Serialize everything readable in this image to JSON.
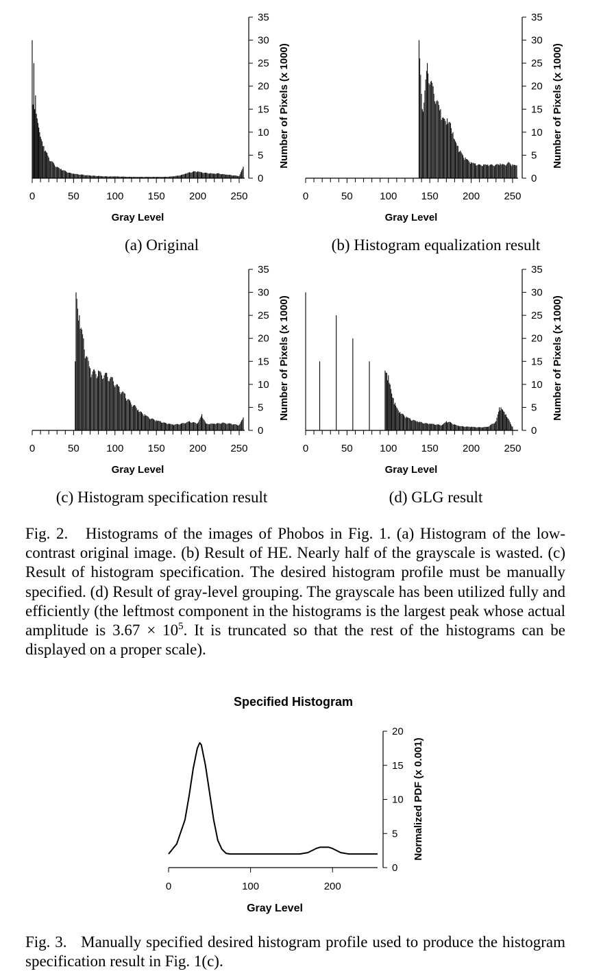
{
  "figure2": {
    "panels": [
      {
        "id": "a",
        "caption": "(a) Original",
        "xlabel": "Gray Level",
        "ylabel": "Number of Pixels (x 1000)",
        "xticks": [
          "0",
          "50",
          "100",
          "150",
          "200",
          "250"
        ],
        "yticks": [
          "0",
          "5",
          "10",
          "15",
          "20",
          "25",
          "30",
          "35"
        ]
      },
      {
        "id": "b",
        "caption": "(b) Histogram equalization result",
        "xlabel": "Gray Level",
        "ylabel": "Number of Pixels (x 1000)",
        "xticks": [
          "0",
          "50",
          "100",
          "150",
          "200",
          "250"
        ],
        "yticks": [
          "0",
          "5",
          "10",
          "15",
          "20",
          "25",
          "30",
          "35"
        ]
      },
      {
        "id": "c",
        "caption": "(c) Histogram specification result",
        "xlabel": "Gray Level",
        "ylabel": "Number of Pixels (x 1000)",
        "xticks": [
          "0",
          "50",
          "100",
          "150",
          "200",
          "250"
        ],
        "yticks": [
          "0",
          "5",
          "10",
          "15",
          "20",
          "25",
          "30",
          "35"
        ]
      },
      {
        "id": "d",
        "caption": "(d) GLG result",
        "xlabel": "Gray Level",
        "ylabel": "Number of Pixels (x 1000)",
        "xticks": [
          "0",
          "50",
          "100",
          "150",
          "200",
          "250"
        ],
        "yticks": [
          "0",
          "5",
          "10",
          "15",
          "20",
          "25",
          "30",
          "35"
        ]
      }
    ],
    "caption": {
      "prefix": "Fig. 2.",
      "text_before_math": "Histograms of the images of Phobos in Fig. 1. (a) Histogram of the low-contrast original image. (b) Result of HE. Nearly half of the grayscale is wasted. (c) Result of histogram specification. The desired histogram profile must be manually specified. (d) Result of gray-level grouping. The grayscale has been utilized fully and efficiently (the leftmost component in the histograms is the largest peak whose actual amplitude is",
      "math_base": "3.67 × 10",
      "math_exp": "5",
      "text_after_math": ". It is truncated so that the rest of the histograms can be displayed on a proper scale)."
    }
  },
  "figure3": {
    "title": "Specified Histogram",
    "xlabel": "Gray Level",
    "ylabel": "Normalized PDF (x 0.001)",
    "xticks": [
      "0",
      "100",
      "200"
    ],
    "yticks": [
      "0",
      "5",
      "10",
      "15",
      "20"
    ],
    "caption": {
      "prefix": "Fig. 3.",
      "text": "Manually specified desired histogram profile used to produce the histogram specification result in Fig. 1(c)."
    }
  },
  "chart_data": [
    {
      "type": "bar",
      "panel": "a",
      "xlabel": "Gray Level",
      "ylabel": "Number of Pixels (x 1000)",
      "xlim": [
        0,
        255
      ],
      "ylim": [
        0,
        35
      ],
      "series": [
        {
          "x": [
            0,
            1,
            2,
            3,
            4,
            5,
            6,
            7,
            8,
            9,
            10,
            12,
            14,
            16,
            18,
            20,
            25,
            30,
            35,
            40,
            45,
            50,
            60,
            70,
            80,
            90,
            100,
            110,
            120,
            130,
            140,
            150,
            160,
            170,
            180,
            185,
            190,
            195,
            200,
            205,
            210,
            215,
            220,
            225,
            230,
            235,
            240,
            245,
            250,
            255
          ],
          "values": [
            30,
            16,
            25,
            15,
            18,
            14,
            13,
            12,
            11,
            10,
            9,
            8,
            7,
            6,
            5.5,
            4.5,
            3.5,
            2.5,
            2,
            1.6,
            1.2,
            1,
            0.8,
            0.6,
            0.5,
            0.4,
            0.4,
            0.35,
            0.3,
            0.3,
            0.3,
            0.3,
            0.3,
            0.4,
            0.7,
            1,
            1.3,
            1.5,
            1.5,
            1.3,
            1.2,
            1.1,
            1,
            1.1,
            0.9,
            0.8,
            0.7,
            0.6,
            0.5,
            2.5
          ]
        }
      ]
    },
    {
      "type": "bar",
      "panel": "b",
      "xlabel": "Gray Level",
      "ylabel": "Number of Pixels (x 1000)",
      "xlim": [
        0,
        255
      ],
      "ylim": [
        0,
        35
      ],
      "series": [
        {
          "x": [
            137,
            141,
            147,
            154,
            163,
            167,
            171,
            175,
            178,
            181,
            184,
            187,
            190,
            193,
            196,
            200,
            205,
            210,
            215,
            220,
            225,
            230,
            235,
            240,
            245,
            250,
            255
          ],
          "values": [
            30,
            15,
            25,
            20,
            15,
            13,
            13,
            12,
            10,
            8,
            7,
            6,
            5,
            4.5,
            4,
            3.5,
            3.2,
            3,
            3,
            3,
            3,
            3,
            3.2,
            3,
            3.5,
            3,
            2.8
          ]
        }
      ]
    },
    {
      "type": "bar",
      "panel": "c",
      "xlabel": "Gray Level",
      "ylabel": "Number of Pixels (x 1000)",
      "xlim": [
        0,
        255
      ],
      "ylim": [
        0,
        35
      ],
      "series": [
        {
          "x": [
            52,
            53,
            57,
            62,
            70,
            80,
            90,
            97,
            105,
            112,
            118,
            124,
            128,
            132,
            136,
            140,
            145,
            150,
            155,
            160,
            165,
            170,
            180,
            190,
            200,
            205,
            210,
            220,
            230,
            240,
            250,
            255
          ],
          "values": [
            15,
            30,
            25,
            20,
            13.5,
            13,
            12.5,
            11.5,
            9.5,
            8,
            6.5,
            5.5,
            4.5,
            4,
            3.5,
            3,
            2.6,
            2.2,
            2,
            1.7,
            1.5,
            1.3,
            1.5,
            2,
            1.6,
            3.5,
            1.5,
            1.5,
            1.7,
            1.5,
            1.2,
            2.8
          ]
        }
      ]
    },
    {
      "type": "bar",
      "panel": "d",
      "xlabel": "Gray Level",
      "ylabel": "Number of Pixels (x 1000)",
      "xlim": [
        0,
        255
      ],
      "ylim": [
        0,
        35
      ],
      "series": [
        {
          "x": [
            0,
            17,
            37,
            57,
            77,
            96,
            98,
            100,
            102,
            104,
            106,
            108,
            110,
            114,
            118,
            122,
            126,
            130,
            135,
            140,
            145,
            150,
            155,
            160,
            165,
            170,
            175,
            180,
            185,
            190,
            200,
            210,
            220,
            230,
            234,
            236,
            238,
            240,
            242,
            245,
            250
          ],
          "values": [
            30,
            15,
            25,
            20,
            15,
            13,
            12.5,
            12,
            10,
            8,
            7,
            6,
            5,
            4,
            3.5,
            3,
            2.6,
            2.3,
            2,
            1.8,
            1.6,
            1.5,
            1.4,
            1.3,
            1.2,
            2,
            1.8,
            1.3,
            1,
            0.9,
            0.8,
            0.7,
            0.8,
            2,
            5,
            5,
            4.5,
            4,
            3.5,
            2.5,
            0.8
          ]
        }
      ]
    },
    {
      "type": "line",
      "title": "Specified Histogram",
      "xlabel": "Gray Level",
      "ylabel": "Normalized PDF (x 0.001)",
      "xlim": [
        0,
        255
      ],
      "ylim": [
        0,
        20
      ],
      "series": [
        {
          "x": [
            0,
            10,
            20,
            25,
            30,
            35,
            38,
            40,
            45,
            50,
            55,
            60,
            65,
            70,
            75,
            80,
            90,
            100,
            120,
            140,
            160,
            170,
            175,
            180,
            185,
            190,
            195,
            200,
            205,
            210,
            220,
            230,
            240,
            255
          ],
          "values": [
            2,
            3.5,
            7,
            10.5,
            14.5,
            17.5,
            18.3,
            18,
            15,
            11,
            7,
            4,
            2.7,
            2.1,
            2,
            2,
            2,
            2,
            2,
            2,
            2,
            2.2,
            2.5,
            2.8,
            3,
            3,
            3,
            2.8,
            2.5,
            2.2,
            2,
            2,
            2,
            2
          ]
        }
      ]
    }
  ]
}
